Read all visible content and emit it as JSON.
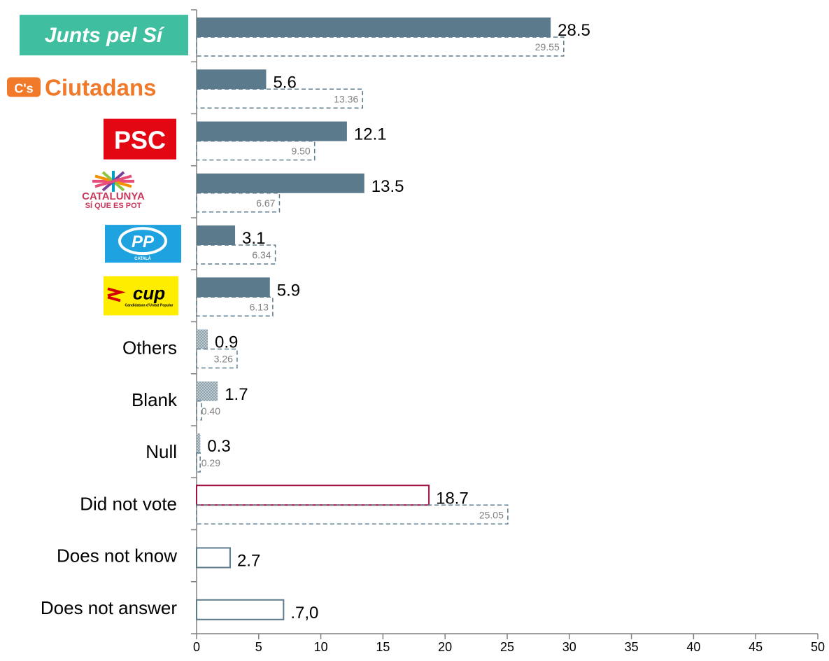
{
  "chart_data": {
    "type": "bar",
    "orientation": "horizontal",
    "xlim": [
      0,
      50
    ],
    "xticks": [
      0,
      5,
      10,
      15,
      20,
      25,
      30,
      35,
      40,
      45,
      50
    ],
    "categories": [
      {
        "label": "",
        "logo": "junts-pel-si-logo",
        "logo_text": "Junts pel Sí",
        "value": 28.5,
        "value_label": "28.5",
        "previous": 29.55,
        "previous_label": "29.55",
        "style": "solid"
      },
      {
        "label": "",
        "logo": "ciutadans-logo",
        "logo_text": "Ciutadans",
        "logo_badge": "C's",
        "value": 5.6,
        "value_label": "5.6",
        "previous": 13.36,
        "previous_label": "13.36",
        "style": "solid"
      },
      {
        "label": "",
        "logo": "psc-logo",
        "logo_text": "PSC",
        "value": 12.1,
        "value_label": "12.1",
        "previous": 9.5,
        "previous_label": "9.50",
        "style": "solid"
      },
      {
        "label": "",
        "logo": "catalunya-si-que-es-pot-logo",
        "logo_text": "CATALUNYA",
        "logo_subtext": "SÍ QUE ES POT",
        "value": 13.5,
        "value_label": "13.5",
        "previous": 6.67,
        "previous_label": "6.67",
        "style": "solid"
      },
      {
        "label": "",
        "logo": "pp-logo",
        "logo_text": "PP",
        "logo_subtext": "CATALÀ",
        "value": 3.1,
        "value_label": "3.1",
        "previous": 6.34,
        "previous_label": "6.34",
        "style": "solid"
      },
      {
        "label": "",
        "logo": "cup-logo",
        "logo_text": "cup",
        "logo_subtext": "Candidatura d'Unitat Popular",
        "value": 5.9,
        "value_label": "5.9",
        "previous": 6.13,
        "previous_label": "6.13",
        "style": "solid"
      },
      {
        "label": "Others",
        "value": 0.9,
        "value_label": "0.9",
        "previous": 3.26,
        "previous_label": "3.26",
        "style": "hatched"
      },
      {
        "label": "Blank",
        "value": 1.7,
        "value_label": "1.7",
        "previous": 0.4,
        "previous_label": "0.40",
        "style": "hatched"
      },
      {
        "label": "Null",
        "value": 0.3,
        "value_label": "0.3",
        "previous": 0.29,
        "previous_label": "0.29",
        "style": "hatched"
      },
      {
        "label": "Did not vote",
        "value": 18.7,
        "value_label": "18.7",
        "previous": 25.05,
        "previous_label": "25.05",
        "style": "outline-red"
      },
      {
        "label": "Does not know",
        "value": 2.7,
        "value_label": "2.7",
        "previous": null,
        "previous_label": "",
        "style": "outline"
      },
      {
        "label": "Does not answer",
        "value": 7.0,
        "value_label": ".7,0",
        "previous": null,
        "previous_label": "",
        "style": "outline"
      }
    ],
    "colors": {
      "solid": "#5b7a8c",
      "outline": "#5b7a8c",
      "outline_red": "#a01040",
      "red_label": "#a01040",
      "dashed": "#5b7a8c",
      "prev_label": "#808080",
      "axis": "#808080"
    },
    "grid": false,
    "legend": "none"
  }
}
